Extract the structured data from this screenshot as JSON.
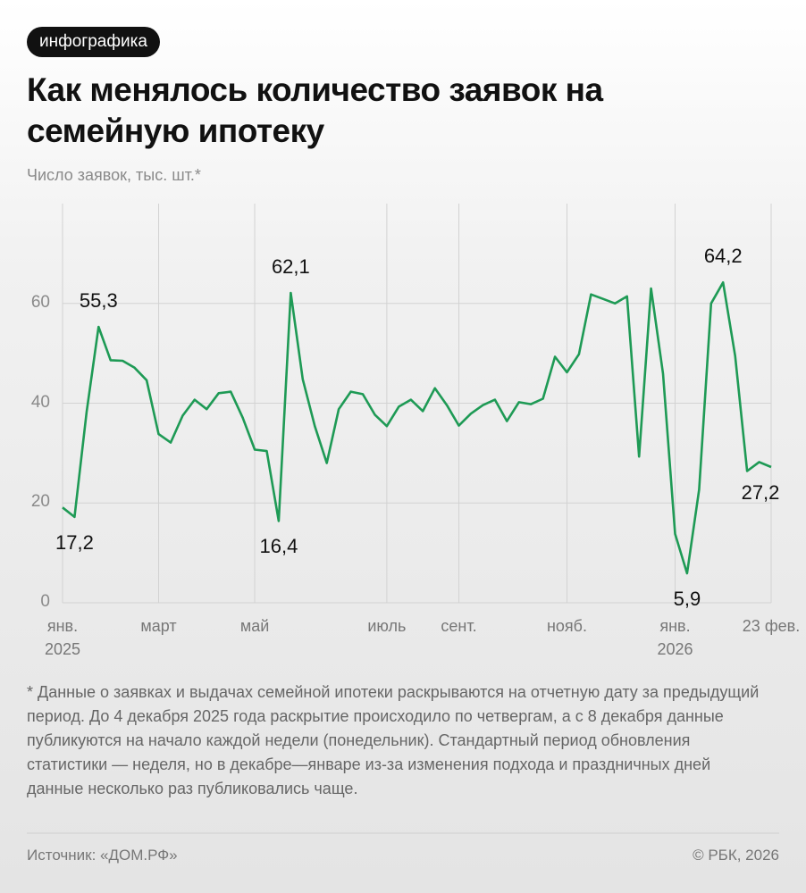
{
  "badge": "инфографика",
  "chart_data": {
    "type": "line",
    "title": "Как менялось количество заявок на семейную ипотеку",
    "subtitle": "Число заявок, тыс. шт.*",
    "color": "#1e9a55",
    "categories": [
      "янв.\n2025",
      null,
      null,
      null,
      null,
      null,
      null,
      null,
      "март",
      null,
      null,
      null,
      null,
      null,
      null,
      null,
      "май",
      null,
      null,
      null,
      null,
      null,
      null,
      null,
      null,
      null,
      null,
      "июль",
      null,
      null,
      null,
      null,
      null,
      "сент.",
      null,
      null,
      null,
      null,
      null,
      null,
      null,
      null,
      "нояб.",
      null,
      null,
      null,
      null,
      null,
      null,
      null,
      null,
      "янв.\n2026",
      null,
      null,
      null,
      null,
      null,
      null,
      null,
      "23 фев."
    ],
    "values": [
      19.1,
      17.2,
      38.2,
      55.3,
      48.6,
      48.5,
      47.1,
      44.6,
      33.8,
      32.1,
      37.5,
      40.7,
      38.8,
      42.0,
      42.3,
      37.1,
      30.7,
      30.4,
      16.4,
      62.1,
      44.8,
      35.4,
      28.0,
      38.8,
      42.3,
      41.8,
      37.7,
      35.4,
      39.3,
      40.7,
      38.4,
      43.0,
      39.6,
      35.5,
      37.9,
      39.6,
      40.7,
      36.4,
      40.2,
      39.8,
      40.9,
      49.3,
      46.2,
      49.8,
      61.8,
      60.9,
      60.0,
      61.4,
      29.3,
      63.0,
      45.9,
      13.8,
      5.9,
      22.7,
      60.0,
      64.2,
      49.5,
      26.4,
      28.2,
      27.2
    ],
    "value_labels": [
      null,
      "17,2",
      null,
      "55,3",
      null,
      null,
      null,
      null,
      null,
      null,
      null,
      null,
      null,
      null,
      null,
      null,
      null,
      null,
      "16,4",
      "62,1",
      null,
      null,
      null,
      null,
      null,
      null,
      null,
      null,
      null,
      null,
      null,
      null,
      null,
      null,
      null,
      null,
      null,
      null,
      null,
      null,
      null,
      null,
      null,
      null,
      null,
      null,
      null,
      null,
      null,
      null,
      null,
      null,
      "5,9",
      null,
      null,
      "64,2",
      null,
      null,
      null,
      "27,2"
    ],
    "ylim": [
      0,
      80
    ],
    "yticks": [
      0,
      20,
      40,
      60
    ],
    "grid": true
  },
  "footnote": "* Данные о заявках и выдачах семейной ипотеки раскрываются на отчетную дату за предыдущий период. До 4 декабря 2025 года раскрытие происходило по четвергам, а с 8 декабря данные публикуются на начало каждой недели (понедельник). Стандартный период обновления статистики — неделя, но в декабре—январе из-за изменения подхода и праздничных дней данные несколько раз публиковались чаще.",
  "source": "Источник: «ДОМ.РФ»",
  "copyright": "© РБК, 2026"
}
